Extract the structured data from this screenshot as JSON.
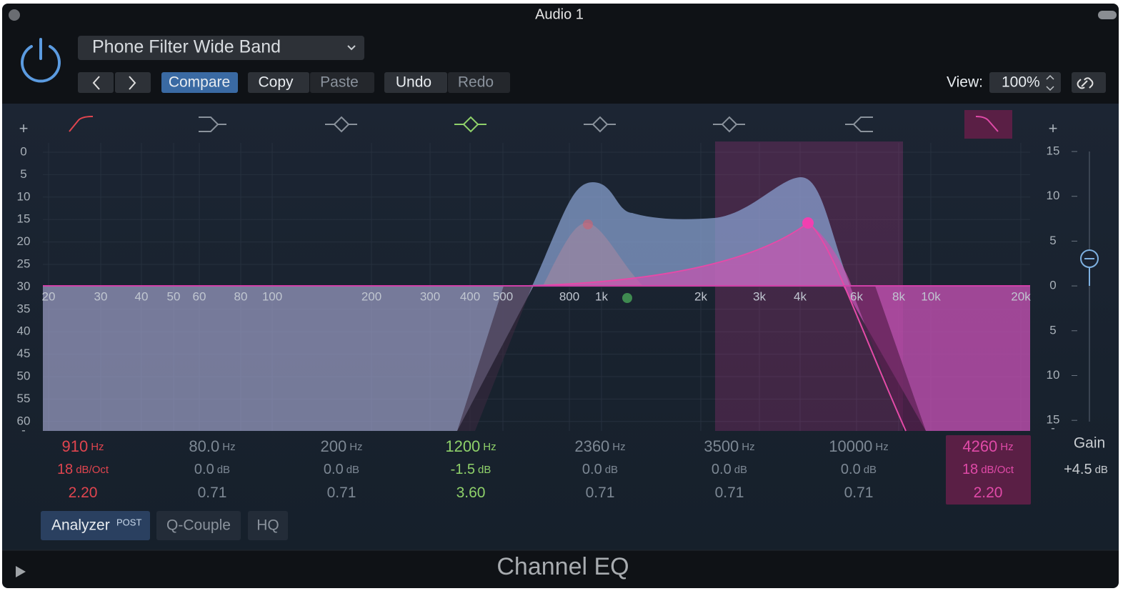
{
  "window": {
    "title": "Audio 1"
  },
  "toolbar": {
    "preset": "Phone Filter Wide Band",
    "compare": "Compare",
    "copy": "Copy",
    "paste": "Paste",
    "undo": "Undo",
    "redo": "Redo",
    "view_label": "View:",
    "view_value": "100%"
  },
  "graph": {
    "left_scale": [
      "+",
      "0",
      "5",
      "10",
      "15",
      "20",
      "25",
      "30",
      "35",
      "40",
      "45",
      "50",
      "55",
      "60",
      "-"
    ],
    "right_scale": [
      "+",
      "15",
      "10",
      "5",
      "0",
      "5",
      "10",
      "15",
      "-"
    ],
    "freq_labels": [
      "20",
      "30",
      "40",
      "50",
      "60",
      "80",
      "100",
      "200",
      "300",
      "400",
      "500",
      "800",
      "1k",
      "2k",
      "3k",
      "4k",
      "6k",
      "8k",
      "10k",
      "20k"
    ]
  },
  "bands": [
    {
      "freq": "910",
      "freq_unit": "Hz",
      "gain": "18",
      "gain_unit": "dB/Oct",
      "q": "2.20"
    },
    {
      "freq": "80.0",
      "freq_unit": "Hz",
      "gain": "0.0",
      "gain_unit": "dB",
      "q": "0.71"
    },
    {
      "freq": "200",
      "freq_unit": "Hz",
      "gain": "0.0",
      "gain_unit": "dB",
      "q": "0.71"
    },
    {
      "freq": "1200",
      "freq_unit": "Hz",
      "gain": "-1.5",
      "gain_unit": "dB",
      "q": "3.60"
    },
    {
      "freq": "2360",
      "freq_unit": "Hz",
      "gain": "0.0",
      "gain_unit": "dB",
      "q": "0.71"
    },
    {
      "freq": "3500",
      "freq_unit": "Hz",
      "gain": "0.0",
      "gain_unit": "dB",
      "q": "0.71"
    },
    {
      "freq": "10000",
      "freq_unit": "Hz",
      "gain": "0.0",
      "gain_unit": "dB",
      "q": "0.71"
    },
    {
      "freq": "4260",
      "freq_unit": "Hz",
      "gain": "18",
      "gain_unit": "dB/Oct",
      "q": "2.20"
    }
  ],
  "gain": {
    "label": "Gain",
    "value": "+4.5",
    "unit": "dB"
  },
  "options": {
    "analyzer": "Analyzer",
    "analyzer_mode": "POST",
    "q_couple": "Q-Couple",
    "hq": "HQ"
  },
  "footer": {
    "title": "Channel EQ"
  }
}
